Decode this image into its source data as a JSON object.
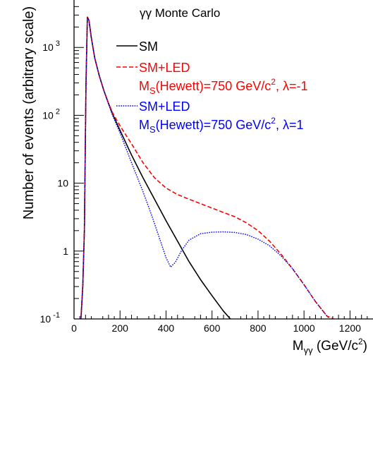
{
  "chart_data": {
    "type": "line",
    "title": "γγ Monte Carlo",
    "ylabel": "Number of events (arbitrary scale)",
    "xlabel": "M_γγ (GeV/c²)",
    "xlim": [
      0,
      1300
    ],
    "ylim": [
      0.1,
      5000
    ],
    "yscale": "log",
    "x_ticks": [
      0,
      200,
      400,
      600,
      800,
      1000,
      1200
    ],
    "y_ticks": [
      {
        "value": 0.1,
        "base": "10",
        "exp": "-1"
      },
      {
        "value": 1,
        "base": "1",
        "exp": ""
      },
      {
        "value": 10,
        "base": "10",
        "exp": ""
      },
      {
        "value": 100,
        "base": "10",
        "exp": "2"
      },
      {
        "value": 1000,
        "base": "10",
        "exp": "3"
      }
    ],
    "legend_position": "top-right",
    "series": [
      {
        "name": "SM",
        "label_lines": [
          "SM"
        ],
        "color": "#000000",
        "dash": "solid",
        "x": [
          30,
          38,
          45,
          52,
          58,
          65,
          75,
          90,
          110,
          130,
          150,
          170,
          200,
          250,
          300,
          350,
          400,
          450,
          500,
          550,
          600,
          650,
          680
        ],
        "y": [
          0.1,
          0.3,
          2,
          300,
          2800,
          2500,
          1400,
          700,
          380,
          230,
          150,
          100,
          60,
          26,
          12,
          5.8,
          2.8,
          1.4,
          0.7,
          0.38,
          0.22,
          0.13,
          0.1
        ]
      },
      {
        "name": "SM+LED",
        "label_lines": [
          "SM+LED",
          "M_S(Hewett)=750 GeV/c², λ=-1"
        ],
        "color": "#ff0000",
        "dash": "dashed",
        "x": [
          30,
          38,
          45,
          52,
          58,
          65,
          75,
          90,
          110,
          130,
          150,
          170,
          200,
          250,
          300,
          350,
          400,
          450,
          500,
          550,
          600,
          650,
          700,
          750,
          800,
          850,
          900,
          950,
          1000,
          1050,
          1100,
          1130
        ],
        "y": [
          0.1,
          0.3,
          2,
          300,
          2800,
          2500,
          1400,
          700,
          380,
          230,
          150,
          105,
          70,
          38,
          20,
          12,
          8.5,
          6.8,
          5.8,
          5.0,
          4.3,
          3.7,
          3.2,
          2.6,
          2.0,
          1.4,
          0.9,
          0.55,
          0.32,
          0.18,
          0.11,
          0.1
        ]
      },
      {
        "name": "SM+LED",
        "label_lines": [
          "SM+LED",
          "M_S(Hewett)=750 GeV/c², λ=1"
        ],
        "color": "#0000ff",
        "dash": "dotted",
        "x": [
          30,
          38,
          45,
          52,
          58,
          65,
          75,
          90,
          110,
          130,
          150,
          170,
          200,
          250,
          300,
          340,
          370,
          400,
          420,
          440,
          470,
          500,
          550,
          600,
          650,
          700,
          750,
          800,
          850,
          900,
          950,
          1000,
          1050,
          1100,
          1140
        ],
        "y": [
          0.1,
          0.3,
          2,
          300,
          2800,
          2500,
          1400,
          700,
          380,
          230,
          145,
          95,
          55,
          20,
          7.5,
          3.2,
          1.6,
          0.8,
          0.58,
          0.68,
          1.05,
          1.45,
          1.8,
          1.9,
          1.92,
          1.88,
          1.75,
          1.5,
          1.2,
          0.85,
          0.55,
          0.32,
          0.18,
          0.11,
          0.08
        ]
      }
    ]
  }
}
